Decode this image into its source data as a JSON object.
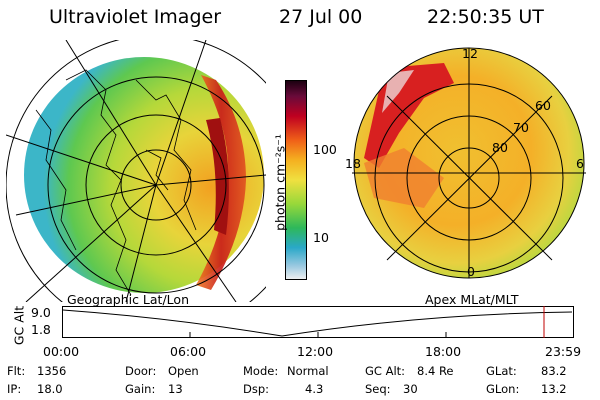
{
  "header": {
    "title": "Ultraviolet Imager",
    "date": "27 Jul 00",
    "time": "22:50:35 UT"
  },
  "colorbar": {
    "unit_label": "photon cm⁻²s⁻¹",
    "ticks": [
      "100",
      "10"
    ]
  },
  "left_panel": {
    "caption": "Geographic Lat/Lon"
  },
  "right_panel": {
    "caption": "Apex MLat/MLT",
    "mlt_labels": [
      "12",
      "18",
      "6",
      "0"
    ],
    "mlat_labels": [
      "60",
      "70",
      "80"
    ]
  },
  "altitude_strip": {
    "axis_label": "GC Alt",
    "y_ticks": [
      "9.0",
      "1.8"
    ],
    "time_ticks": [
      "00:00",
      "06:00",
      "12:00",
      "18:00",
      "23:59"
    ],
    "marker_color": "#c00000"
  },
  "status": {
    "row1": [
      {
        "key": "Flt:",
        "value": "1356"
      },
      {
        "key": "Door:",
        "value": "Open"
      },
      {
        "key": "Mode:",
        "value": "Normal"
      },
      {
        "key": "GC Alt:",
        "value": "8.4 Re"
      },
      {
        "key": "GLat:",
        "value": "83.2"
      }
    ],
    "row2": [
      {
        "key": "IP:",
        "value": "18.0"
      },
      {
        "key": "Gain:",
        "value": "13"
      },
      {
        "key": "Dsp:",
        "value": "4.3"
      },
      {
        "key": "Seq:",
        "value": "30"
      },
      {
        "key": "GLon:",
        "value": "13.2"
      }
    ]
  }
}
